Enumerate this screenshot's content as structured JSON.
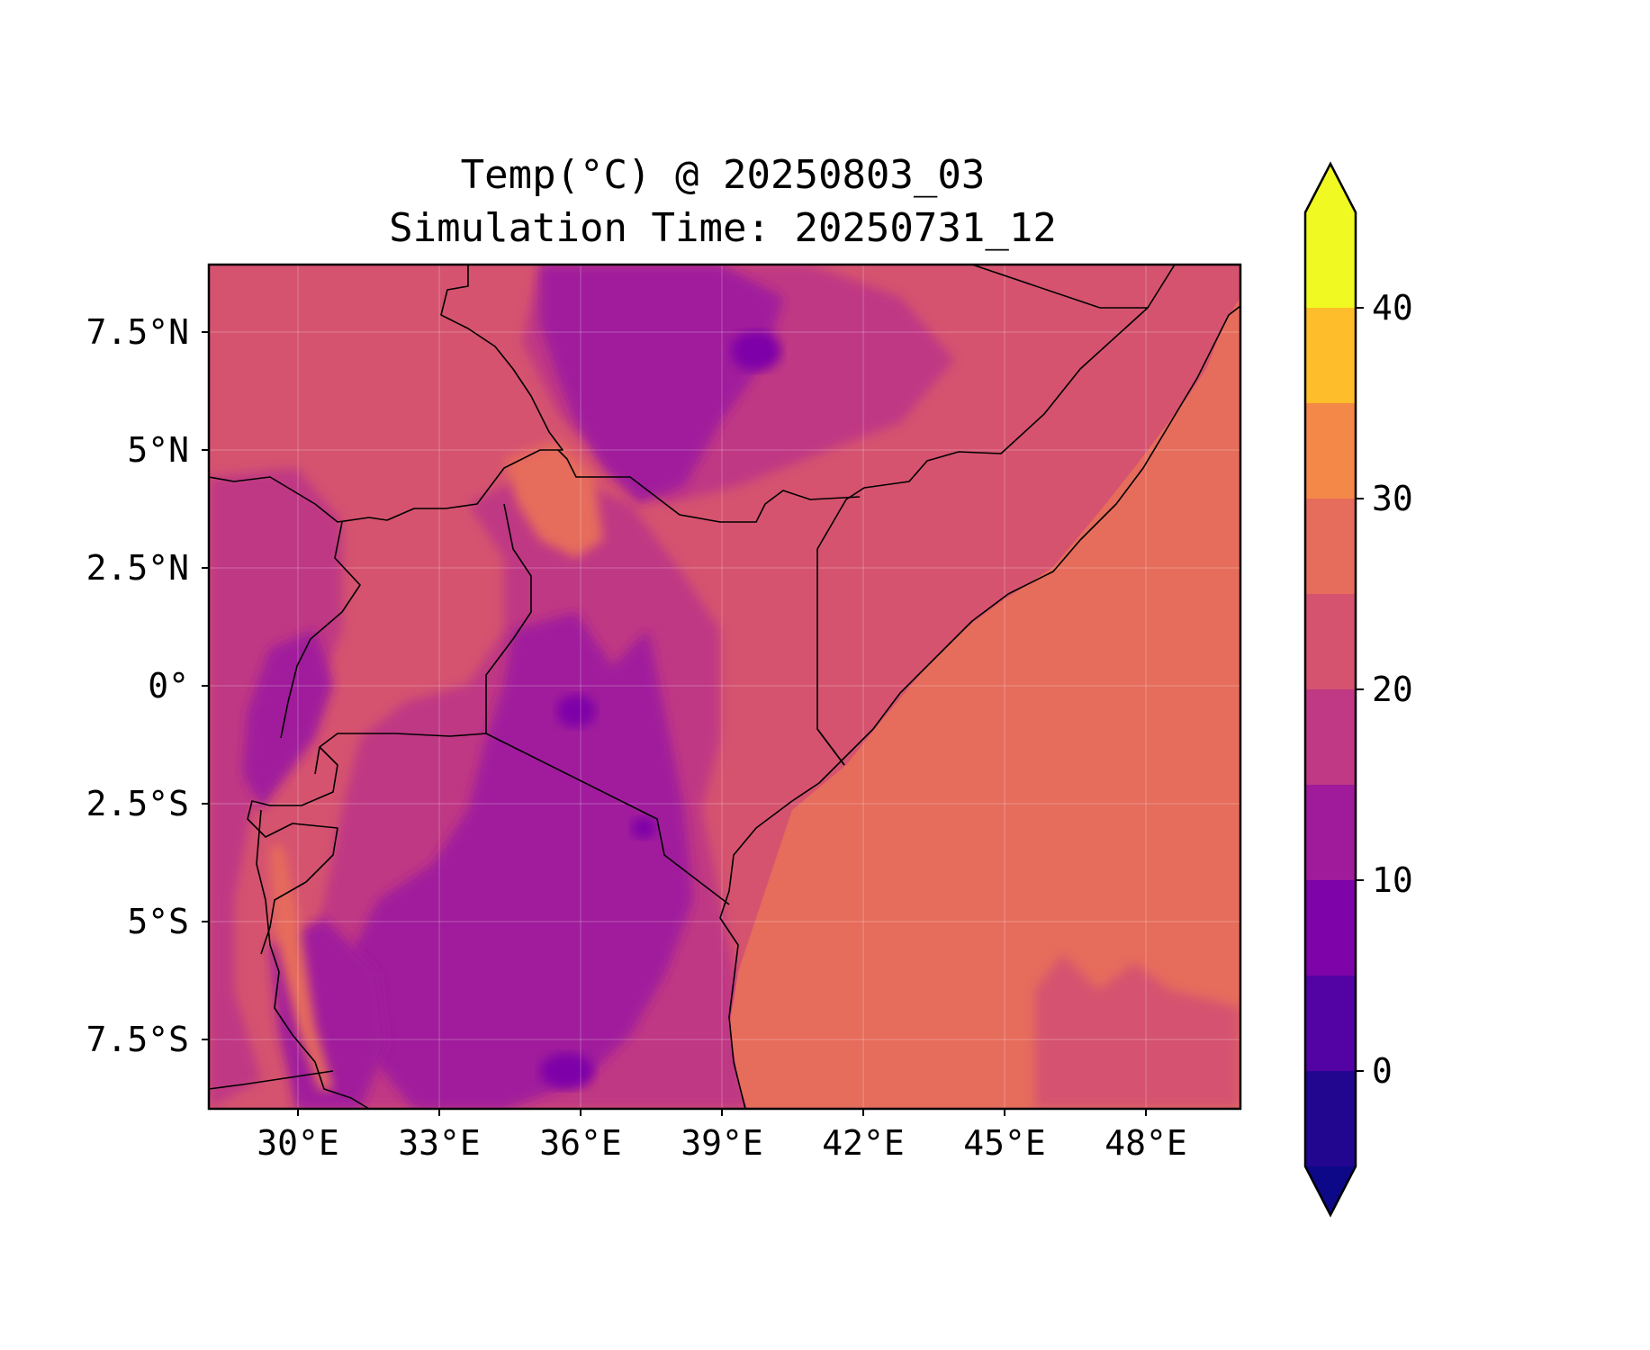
{
  "title": {
    "line1": "Temp(°C) @ 20250803_03",
    "line2": "Simulation Time: 20250731_12"
  },
  "map": {
    "variable": "Temp(°C)",
    "lon_ticks": [
      "30°E",
      "33°E",
      "36°E",
      "39°E",
      "42°E",
      "45°E",
      "48°E"
    ],
    "lat_ticks": [
      "7.5°N",
      "5°N",
      "2.5°N",
      "0°",
      "2.5°S",
      "5°S",
      "7.5°S"
    ],
    "extent": {
      "lon_min": 28.1,
      "lon_max": 50.0,
      "lat_min": -9.0,
      "lat_max": 8.9
    },
    "ocean_value_range": [
      25,
      30
    ]
  },
  "colorbar": {
    "ticks": [
      "0",
      "10",
      "20",
      "30",
      "40"
    ],
    "levels": [
      -5,
      0,
      5,
      10,
      15,
      20,
      25,
      30,
      35,
      40,
      45
    ],
    "extend": "both",
    "colors": [
      "#0d0887",
      "#220690",
      "#5302a3",
      "#7e03a8",
      "#a01a9c",
      "#bf3984",
      "#d5536f",
      "#e66c5c",
      "#f48849",
      "#febd2a",
      "#f0f921"
    ]
  }
}
